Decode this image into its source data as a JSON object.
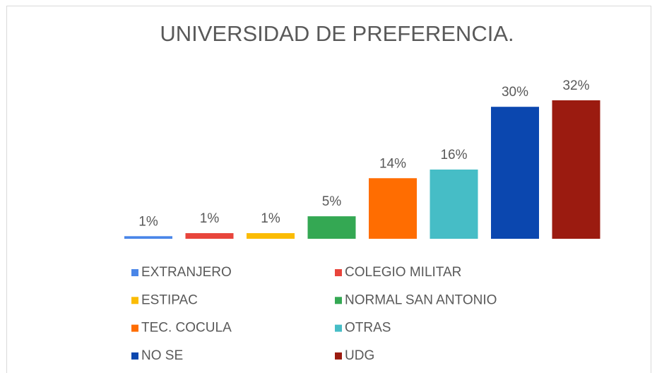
{
  "chart_data": {
    "type": "bar",
    "title": "UNIVERSIDAD DE PREFERENCIA.",
    "categories": [
      "EXTRANJERO",
      "COLEGIO MILITAR",
      "ESTIPAC",
      "NORMAL SAN ANTONIO",
      "TEC. COCULA",
      "OTRAS",
      "NO SE",
      "UDG"
    ],
    "values": [
      0.6,
      1.3,
      1.3,
      5.2,
      14,
      16,
      30.5,
      32
    ],
    "value_labels": [
      "1%",
      "1%",
      "1%",
      "5%",
      "14%",
      "16%",
      "30%",
      "32%"
    ],
    "colors": [
      "#4a86e8",
      "#e8453c",
      "#fbbc04",
      "#34a853",
      "#ff6d01",
      "#46bdc6",
      "#0b47af",
      "#9b1b10"
    ]
  }
}
